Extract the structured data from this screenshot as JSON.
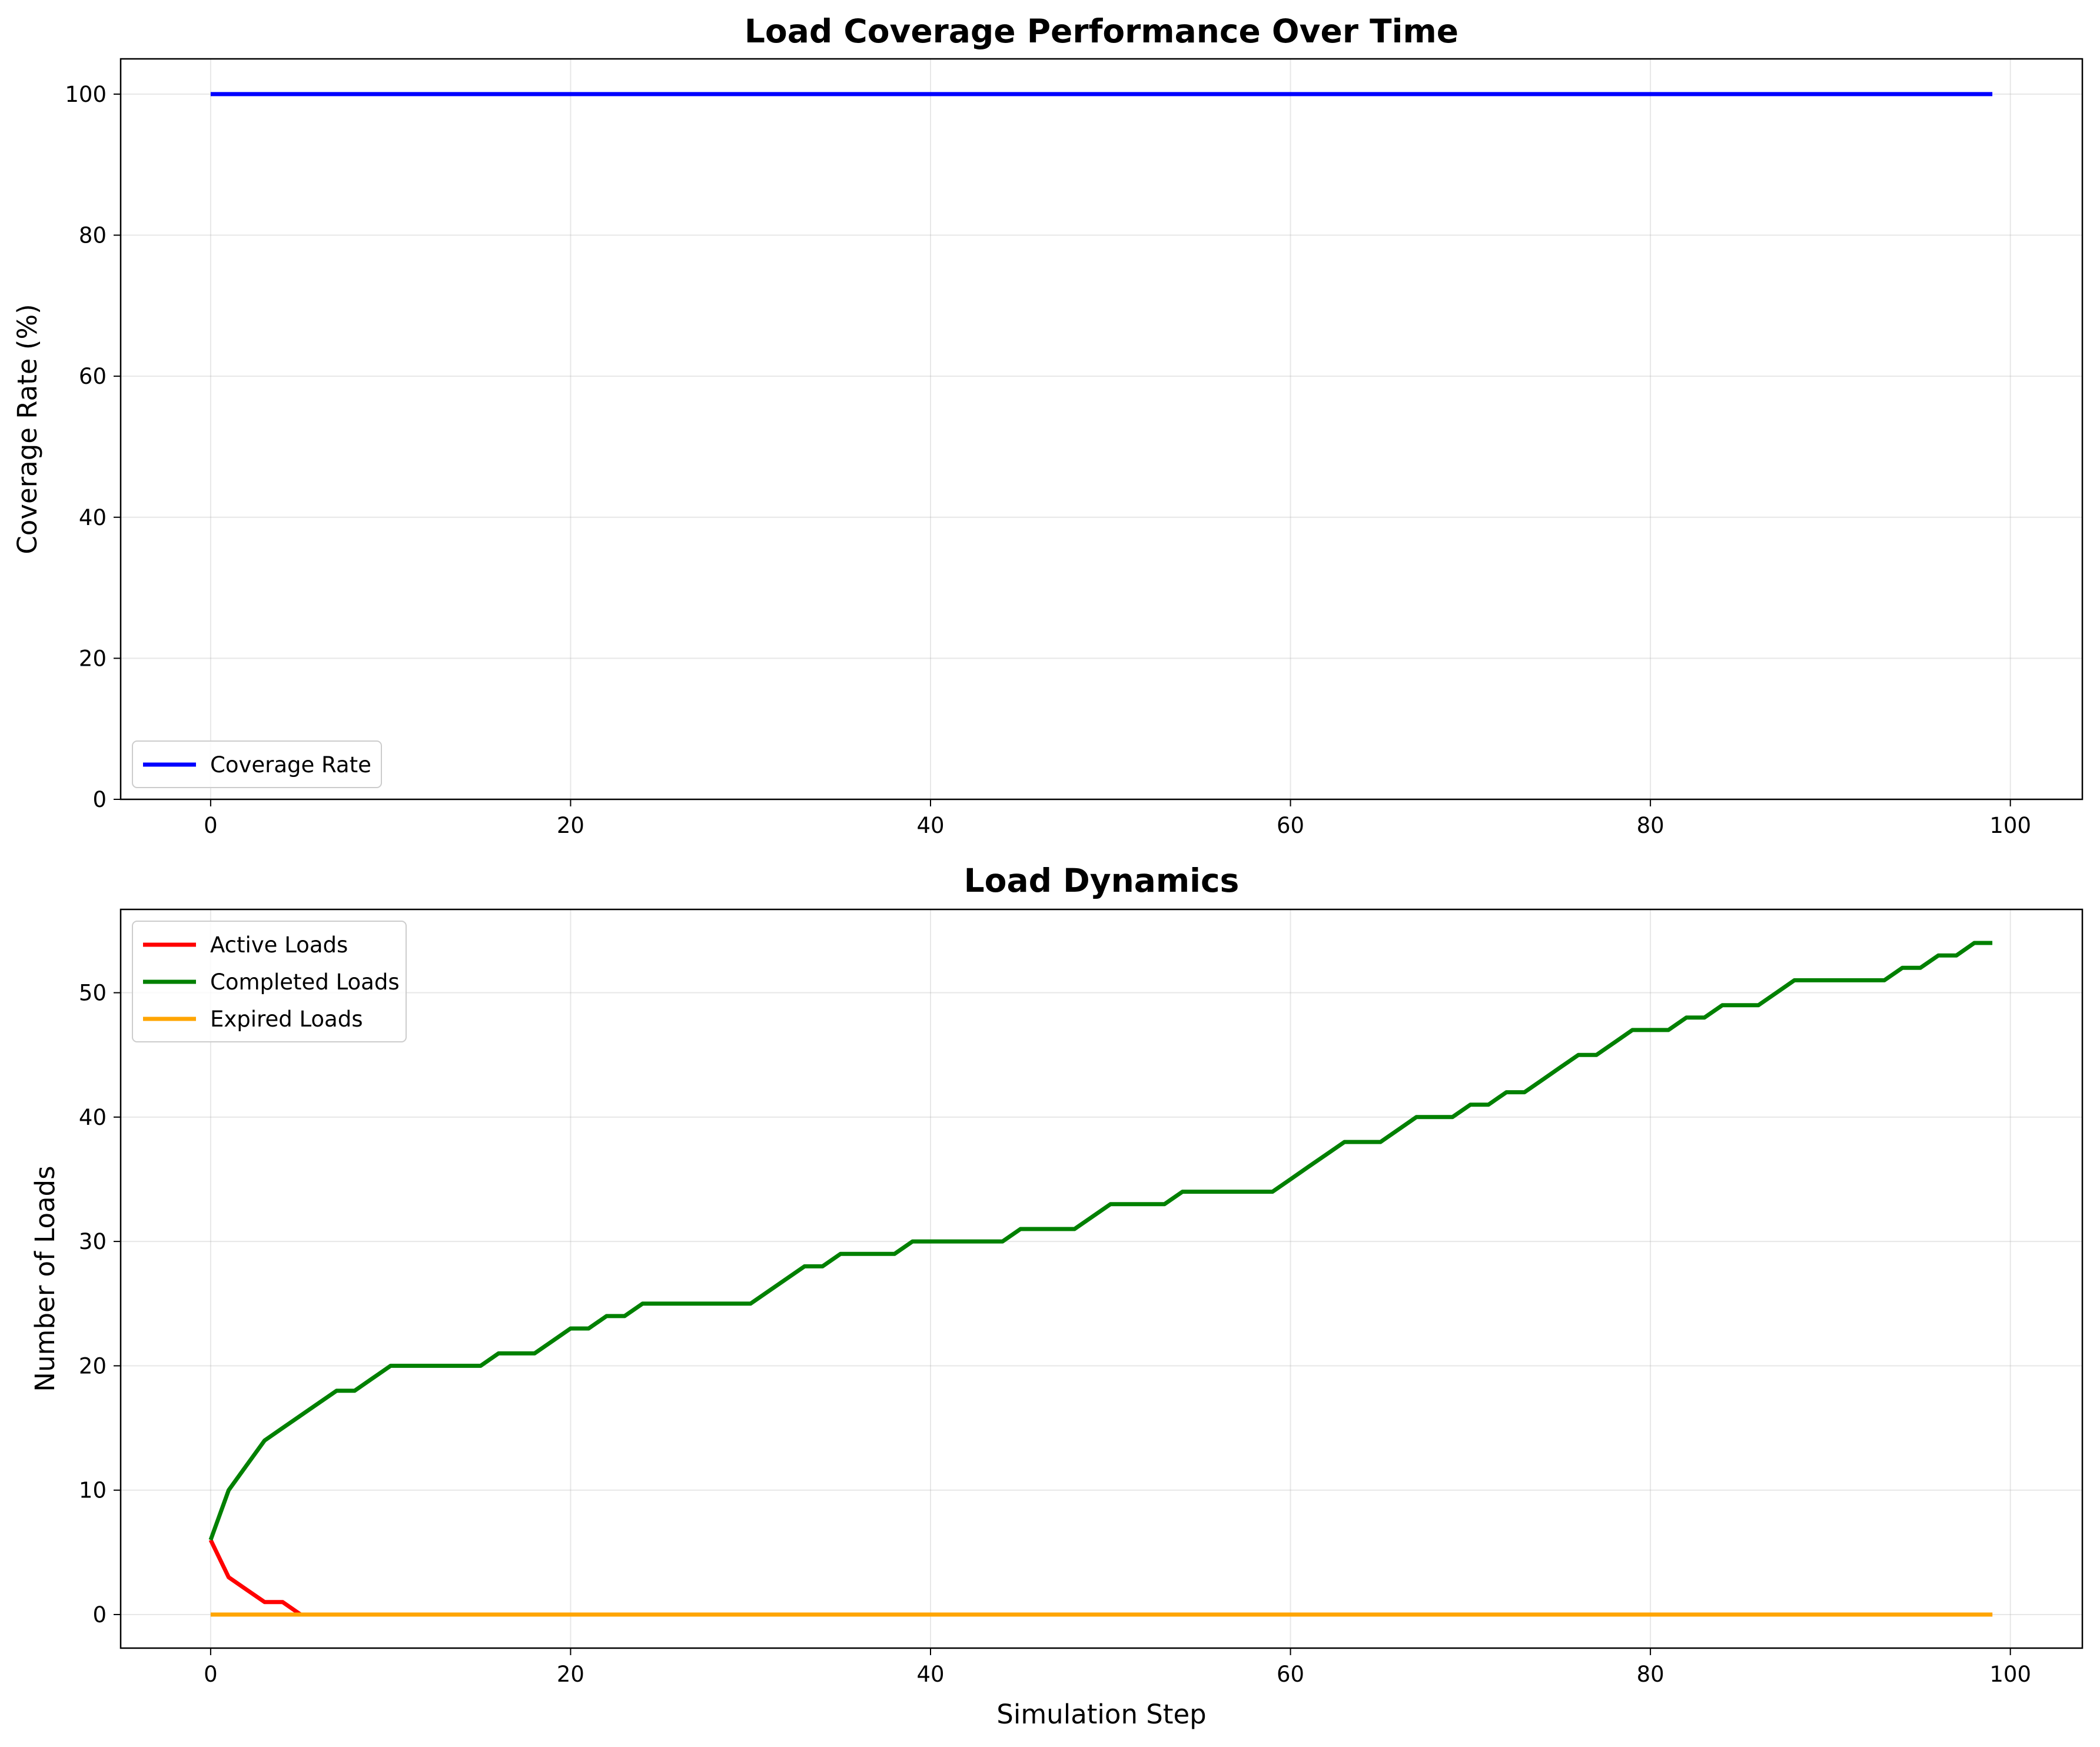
{
  "chart_data": [
    {
      "type": "line",
      "title": "Load Coverage Performance Over Time",
      "xlabel": "",
      "ylabel": "Coverage Rate (%)",
      "xlim": [
        -5,
        104
      ],
      "ylim": [
        0,
        105
      ],
      "xticks": [
        0,
        20,
        40,
        60,
        80,
        100
      ],
      "yticks": [
        0,
        20,
        40,
        60,
        80,
        100
      ],
      "grid": true,
      "legend_position": "lower-left",
      "series": [
        {
          "name": "Coverage Rate",
          "color": "#0000ff",
          "x": [
            0,
            99
          ],
          "y": [
            100,
            100
          ]
        }
      ]
    },
    {
      "type": "line",
      "title": "Load Dynamics",
      "xlabel": "Simulation Step",
      "ylabel": "Number of Loads",
      "xlim": [
        -5,
        104
      ],
      "ylim": [
        -2.7,
        56.7
      ],
      "xticks": [
        0,
        20,
        40,
        60,
        80,
        100
      ],
      "yticks": [
        0,
        10,
        20,
        30,
        40,
        50
      ],
      "grid": true,
      "legend_position": "upper-left",
      "series": [
        {
          "name": "Active Loads",
          "color": "#ff0000",
          "x": [
            0,
            1,
            2,
            3,
            4,
            5,
            99
          ],
          "y": [
            6,
            3,
            2,
            1,
            1,
            0,
            0
          ]
        },
        {
          "name": "Completed Loads",
          "color": "#008000",
          "x": [
            0,
            1,
            2,
            3,
            4,
            5,
            6,
            7,
            8,
            9,
            10,
            11,
            12,
            13,
            14,
            15,
            16,
            17,
            18,
            19,
            20,
            21,
            22,
            23,
            24,
            25,
            26,
            27,
            28,
            29,
            30,
            31,
            32,
            33,
            34,
            35,
            36,
            37,
            38,
            39,
            40,
            41,
            42,
            43,
            44,
            45,
            46,
            47,
            48,
            49,
            50,
            51,
            52,
            53,
            54,
            55,
            56,
            57,
            58,
            59,
            60,
            61,
            62,
            63,
            64,
            65,
            66,
            67,
            68,
            69,
            70,
            71,
            72,
            73,
            74,
            75,
            76,
            77,
            78,
            79,
            80,
            81,
            82,
            83,
            84,
            85,
            86,
            87,
            88,
            89,
            90,
            91,
            92,
            93,
            94,
            95,
            96,
            97,
            98,
            99
          ],
          "y": [
            6,
            10,
            12,
            14,
            15,
            16,
            17,
            18,
            18,
            19,
            20,
            20,
            20,
            20,
            20,
            20,
            21,
            21,
            21,
            22,
            23,
            23,
            24,
            24,
            25,
            25,
            25,
            25,
            25,
            25,
            25,
            26,
            27,
            28,
            28,
            29,
            29,
            29,
            29,
            30,
            30,
            30,
            30,
            30,
            30,
            31,
            31,
            31,
            31,
            32,
            33,
            33,
            33,
            33,
            34,
            34,
            34,
            34,
            34,
            34,
            35,
            36,
            37,
            38,
            38,
            38,
            39,
            40,
            40,
            40,
            41,
            41,
            42,
            42,
            43,
            44,
            45,
            45,
            46,
            47,
            47,
            47,
            48,
            48,
            49,
            49,
            49,
            50,
            51,
            51,
            51,
            51,
            51,
            51,
            52,
            52,
            53,
            53,
            54,
            54
          ]
        },
        {
          "name": "Expired Loads",
          "color": "#ffa500",
          "x": [
            0,
            99
          ],
          "y": [
            0,
            0
          ]
        }
      ]
    }
  ]
}
